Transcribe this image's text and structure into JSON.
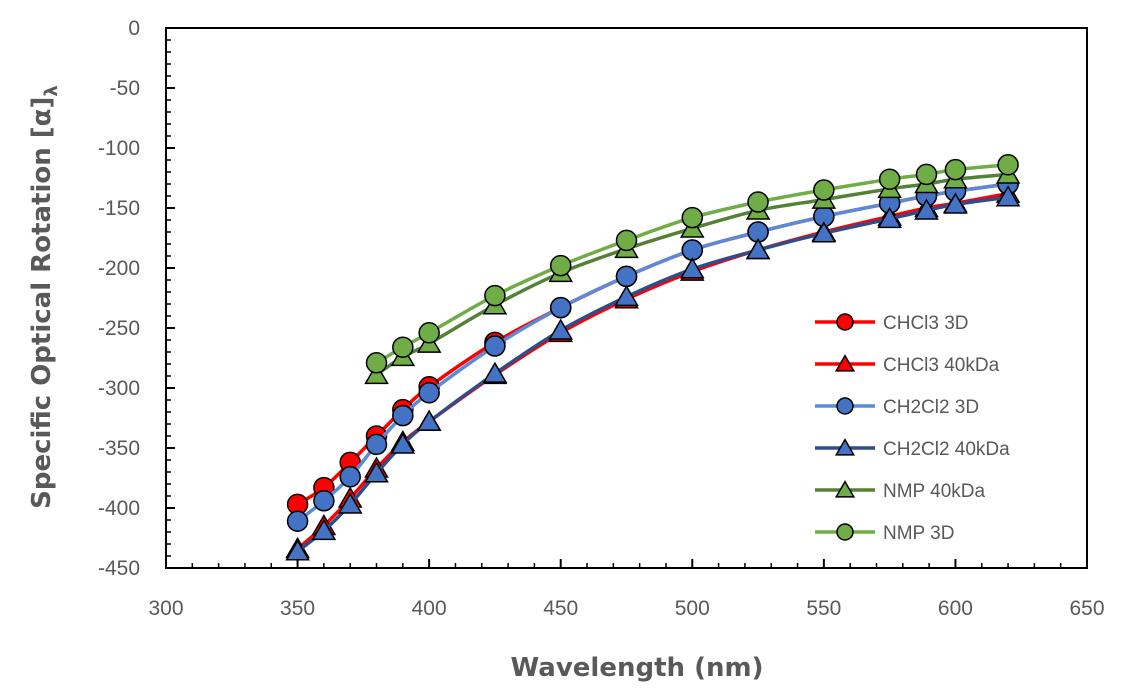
{
  "chart_data": {
    "type": "scatter",
    "xlabel": "Wavelength (nm)",
    "ylabel_main": "Specific Optical Rotation [α]",
    "ylabel_sub": "λ",
    "xlim": [
      300,
      650
    ],
    "ylim": [
      -450,
      0
    ],
    "xticks": [
      300,
      350,
      400,
      450,
      500,
      550,
      600,
      650
    ],
    "yticks": [
      0,
      -50,
      -100,
      -150,
      -200,
      -250,
      -300,
      -350,
      -400,
      -450
    ],
    "grid": false,
    "legend_position": "right",
    "series": [
      {
        "name": "CHCl3 3D",
        "marker": "circle",
        "fill": "#ff0000",
        "line": "#ff0000",
        "x": [
          350,
          360,
          370,
          380,
          390,
          400,
          425,
          450,
          475,
          500,
          525,
          550,
          575,
          589,
          600,
          620
        ],
        "y": [
          -397,
          -383,
          -362,
          -340,
          -318,
          -299,
          -262,
          -233,
          -207,
          -185,
          -170,
          -157,
          -146,
          -140,
          -136,
          -130
        ]
      },
      {
        "name": "CHCl3 40kDa",
        "marker": "triangle",
        "fill": "#ff0000",
        "line": "#ff0000",
        "x": [
          350,
          360,
          370,
          380,
          390,
          400,
          425,
          450,
          475,
          500,
          525,
          550,
          575,
          589,
          600,
          620
        ],
        "y": [
          -434,
          -415,
          -392,
          -367,
          -345,
          -328,
          -289,
          -254,
          -226,
          -203,
          -185,
          -170,
          -157,
          -150,
          -146,
          -138
        ]
      },
      {
        "name": "CH2Cl2 3D",
        "marker": "circle",
        "fill": "#4472c4",
        "line": "#5b8ad6",
        "x": [
          350,
          360,
          370,
          380,
          390,
          400,
          425,
          450,
          475,
          500,
          525,
          550,
          575,
          589,
          600,
          620
        ],
        "y": [
          -411,
          -394,
          -374,
          -347,
          -323,
          -304,
          -265,
          -233,
          -207,
          -185,
          -170,
          -157,
          -146,
          -140,
          -136,
          -130
        ]
      },
      {
        "name": "CH2Cl2 40kDa",
        "marker": "triangle",
        "fill": "#4472c4",
        "line": "#2f4d8a",
        "x": [
          350,
          360,
          370,
          380,
          390,
          400,
          425,
          450,
          475,
          500,
          525,
          550,
          575,
          589,
          600,
          620
        ],
        "y": [
          -436,
          -419,
          -397,
          -371,
          -347,
          -328,
          -288,
          -252,
          -224,
          -201,
          -185,
          -171,
          -159,
          -152,
          -147,
          -141
        ]
      },
      {
        "name": "NMP 40kDa",
        "marker": "triangle",
        "fill": "#70ad47",
        "line": "#548235",
        "x": [
          380,
          390,
          400,
          425,
          450,
          475,
          500,
          525,
          550,
          575,
          589,
          600,
          620
        ],
        "y": [
          -289,
          -274,
          -263,
          -231,
          -204,
          -184,
          -167,
          -152,
          -143,
          -134,
          -130,
          -126,
          -122
        ]
      },
      {
        "name": "NMP 3D",
        "marker": "circle",
        "fill": "#70ad47",
        "line": "#70ad47",
        "x": [
          380,
          390,
          400,
          425,
          450,
          475,
          500,
          525,
          550,
          575,
          589,
          600,
          620
        ],
        "y": [
          -279,
          -266,
          -254,
          -223,
          -198,
          -177,
          -158,
          -145,
          -135,
          -126,
          -122,
          -118,
          -114
        ]
      }
    ]
  }
}
